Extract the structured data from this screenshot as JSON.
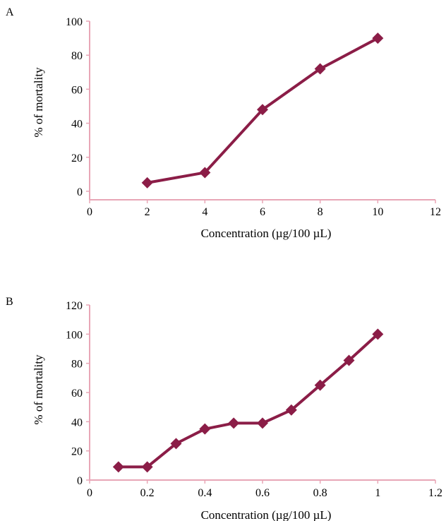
{
  "colors": {
    "axis": "#e8a6b6",
    "series": "#8b1d47"
  },
  "panels": [
    {
      "label": "A"
    },
    {
      "label": "B"
    }
  ],
  "chart_data": [
    {
      "type": "line",
      "panel_label": "A",
      "title": "",
      "xlabel": "Concentration (µg/100 µL)",
      "ylabel": "% of mortality",
      "xlim": [
        0,
        12
      ],
      "ylim": [
        -5,
        100
      ],
      "xticks": [
        0,
        2,
        4,
        6,
        8,
        10,
        12
      ],
      "xtick_labels": [
        "0",
        "2",
        "4",
        "6",
        "8",
        "10",
        "12"
      ],
      "yticks": [
        0,
        20,
        40,
        60,
        80,
        100
      ],
      "ytick_labels": [
        "0",
        "20",
        "40",
        "60",
        "80",
        "100"
      ],
      "grid": false,
      "marker": "diamond",
      "series": [
        {
          "x": [
            2,
            4,
            6,
            8,
            10
          ],
          "values": [
            5,
            11,
            48,
            72,
            90
          ]
        }
      ]
    },
    {
      "type": "line",
      "panel_label": "B",
      "title": "",
      "xlabel": "Concentration (µg/100 µL)",
      "ylabel": "% of mortality",
      "xlim": [
        0,
        1.2
      ],
      "ylim": [
        0,
        120
      ],
      "xticks": [
        0,
        0.2,
        0.4,
        0.6,
        0.8,
        1,
        1.2
      ],
      "xtick_labels": [
        "0",
        "0.2",
        "0.4",
        "0.6",
        "0.8",
        "1",
        "1.2"
      ],
      "yticks": [
        0,
        20,
        40,
        60,
        80,
        100,
        120
      ],
      "ytick_labels": [
        "0",
        "20",
        "40",
        "60",
        "80",
        "100",
        "120"
      ],
      "grid": false,
      "marker": "diamond",
      "series": [
        {
          "x": [
            0.1,
            0.2,
            0.3,
            0.4,
            0.5,
            0.6,
            0.7,
            0.8,
            0.9,
            1.0
          ],
          "values": [
            9,
            9,
            25,
            35,
            39,
            39,
            48,
            65,
            82,
            100
          ]
        }
      ]
    }
  ]
}
